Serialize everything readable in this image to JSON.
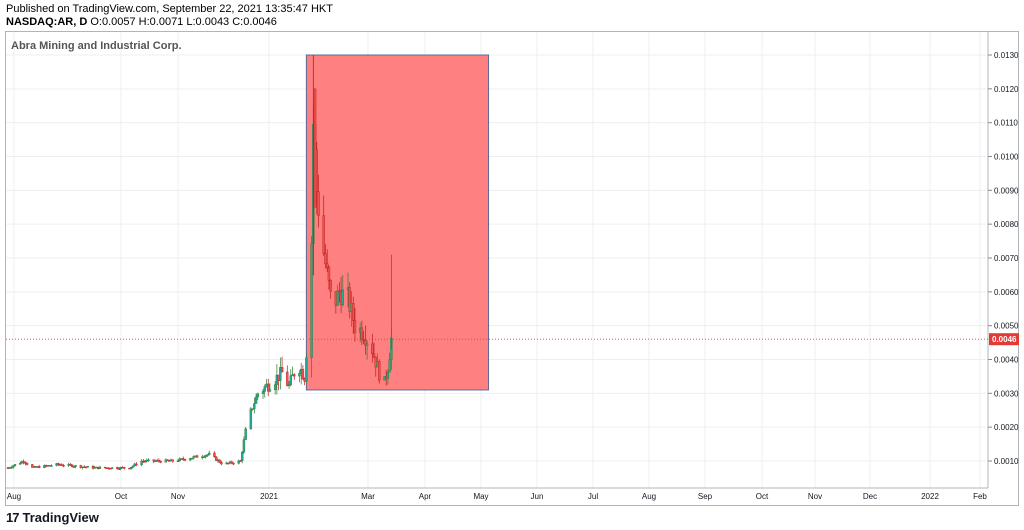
{
  "header": {
    "published": "Published on TradingView.com, September 22, 2021 13:35:47 HKT",
    "symbol": "NASDAQ:AR, D",
    "ohlc": "O:0.0057 H:0.0071 L:0.0043 C:0.0046"
  },
  "footer": {
    "brand": "TradingView",
    "logo_glyph": "17"
  },
  "colors": {
    "up": "#26a69a",
    "up_dark": "#2e7d32",
    "down": "#ef5350",
    "down_dark": "#b71c1c",
    "price_line": "#e53935",
    "box_fill": "#ff8080",
    "box_border": "#5b6a9a"
  },
  "chart_data": {
    "type": "candlestick",
    "title": "Abra Mining and Industrial Corp.",
    "x_ticks": [
      "Aug",
      "Oct",
      "Nov",
      "2021",
      "Mar",
      "Apr",
      "May",
      "Jun",
      "Jul",
      "Aug",
      "Sep",
      "Oct",
      "Nov",
      "Dec",
      "2022",
      "Feb"
    ],
    "y_ticks": [
      "0.0130",
      "0.0120",
      "0.0110",
      "0.0100",
      "0.0090",
      "0.0080",
      "0.0070",
      "0.0060",
      "0.0050",
      "0.0040",
      "0.0030",
      "0.0020",
      "0.0010"
    ],
    "ylim": [
      0.0,
      0.0135
    ],
    "last_price": "0.0046",
    "last_price_value": 0.0046,
    "grid": true,
    "highlight_box": {
      "price_top": 0.013,
      "price_bottom": 0.0031,
      "start": "2021-01-15",
      "end": "2021-04-30"
    },
    "price_segments": [
      [
        "2020-07-27",
        0.0008
      ],
      [
        "2020-08-05",
        0.001
      ],
      [
        "2020-08-10",
        0.0008
      ],
      [
        "2020-08-25",
        0.0009
      ],
      [
        "2020-09-15",
        0.0008
      ],
      [
        "2020-10-05",
        0.0008
      ],
      [
        "2020-10-12",
        0.001
      ],
      [
        "2020-10-30",
        0.001
      ],
      [
        "2020-11-10",
        0.0011
      ],
      [
        "2020-11-20",
        0.0012
      ],
      [
        "2020-11-28",
        0.0009
      ],
      [
        "2020-12-08",
        0.001
      ],
      [
        "2020-12-12",
        0.0022
      ],
      [
        "2020-12-18",
        0.003
      ],
      [
        "2020-12-25",
        0.0033
      ],
      [
        "2021-01-01",
        0.0036
      ],
      [
        "2021-01-05",
        0.0032
      ],
      [
        "2021-01-10",
        0.0039
      ],
      [
        "2021-01-14",
        0.0035
      ],
      [
        "2021-01-16",
        0.005
      ],
      [
        "2021-01-18",
        0.0075
      ],
      [
        "2021-01-19",
        0.011
      ],
      [
        "2021-01-21",
        0.009
      ],
      [
        "2021-01-24",
        0.0075
      ],
      [
        "2021-01-27",
        0.0065
      ],
      [
        "2021-01-30",
        0.0055
      ],
      [
        "2021-02-03",
        0.006
      ],
      [
        "2021-02-08",
        0.0058
      ],
      [
        "2021-02-12",
        0.005
      ],
      [
        "2021-02-17",
        0.0048
      ],
      [
        "2021-02-22",
        0.0043
      ],
      [
        "2021-02-26",
        0.0036
      ],
      [
        "2021-03-01",
        0.0033
      ],
      [
        "2021-03-03",
        0.0038
      ],
      [
        "2021-03-05",
        0.0046
      ]
    ]
  }
}
